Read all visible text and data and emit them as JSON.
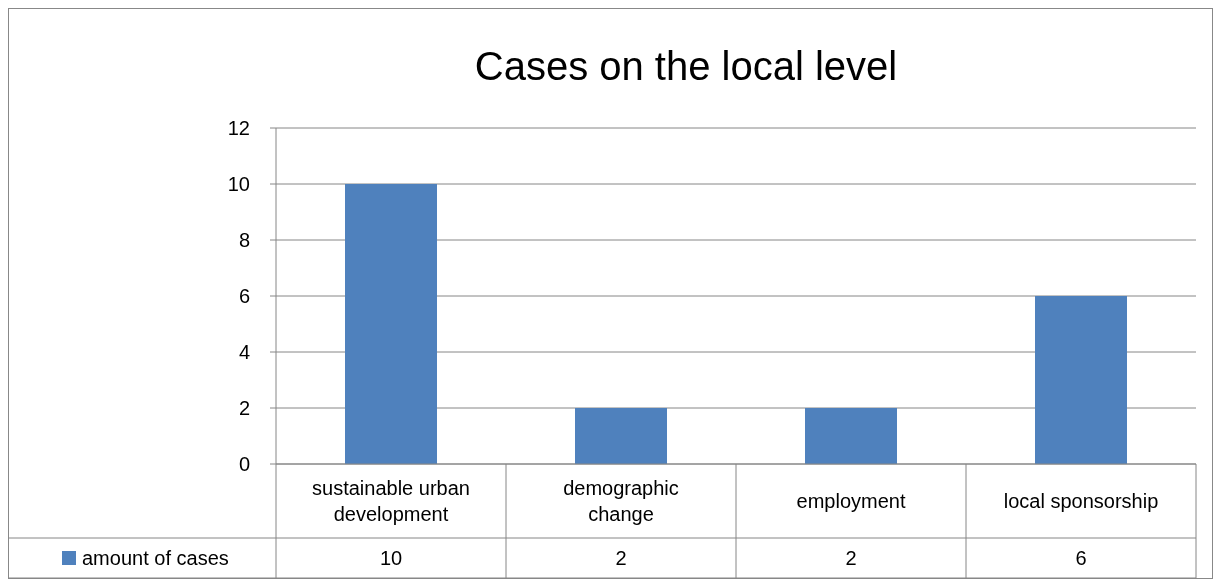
{
  "chart_data": {
    "type": "bar",
    "title": "Cases on the local level",
    "categories": [
      "sustainable urban development",
      "demographic change",
      "employment",
      "local sponsorship"
    ],
    "series": [
      {
        "name": "amount of cases",
        "color": "#4f81bd",
        "values": [
          10,
          2,
          2,
          6
        ]
      }
    ],
    "ylim": [
      0,
      12
    ],
    "yticks": [
      0,
      2,
      4,
      6,
      8,
      10,
      12
    ],
    "grid": "y",
    "data_labels": true,
    "legend": "bottom left"
  }
}
